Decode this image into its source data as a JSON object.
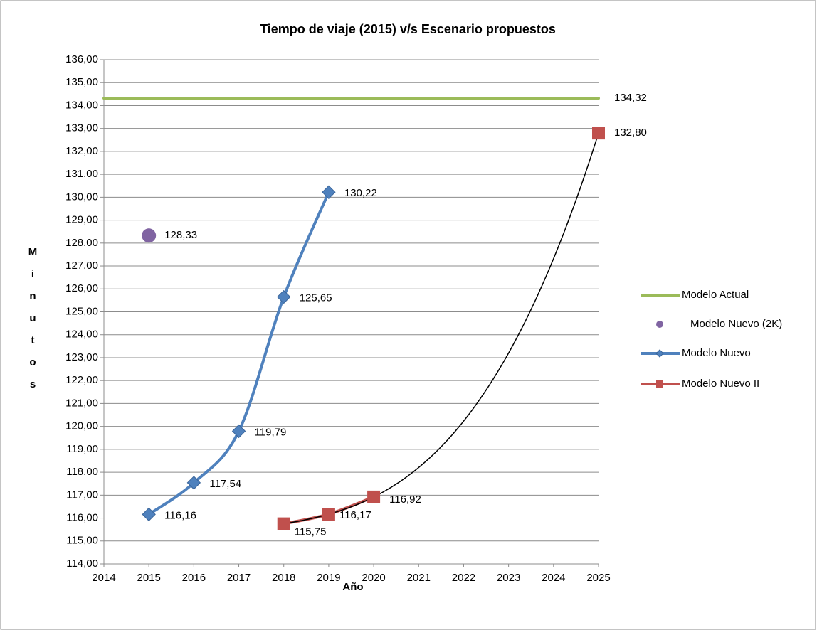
{
  "chart_data": {
    "type": "line",
    "title": "Tiempo de viaje (2015) v/s  Escenario propuestos",
    "xlabel": "Año",
    "ylabel": "Minutos",
    "xlim": [
      2014,
      2025
    ],
    "xticks": [
      2014,
      2015,
      2016,
      2017,
      2018,
      2019,
      2020,
      2021,
      2022,
      2023,
      2024,
      2025
    ],
    "ylim": [
      114,
      136
    ],
    "yticks": [
      {
        "value": 114,
        "label": "114,00"
      },
      {
        "value": 115,
        "label": "115,00"
      },
      {
        "value": 116,
        "label": "116,00"
      },
      {
        "value": 117,
        "label": "117,00"
      },
      {
        "value": 118,
        "label": "118,00"
      },
      {
        "value": 119,
        "label": "119,00"
      },
      {
        "value": 120,
        "label": "120,00"
      },
      {
        "value": 121,
        "label": "121,00"
      },
      {
        "value": 122,
        "label": "122,00"
      },
      {
        "value": 123,
        "label": "123,00"
      },
      {
        "value": 124,
        "label": "124,00"
      },
      {
        "value": 125,
        "label": "125,00"
      },
      {
        "value": 126,
        "label": "126,00"
      },
      {
        "value": 127,
        "label": "127,00"
      },
      {
        "value": 128,
        "label": "128,00"
      },
      {
        "value": 129,
        "label": "129,00"
      },
      {
        "value": 130,
        "label": "130,00"
      },
      {
        "value": 131,
        "label": "131,00"
      },
      {
        "value": 132,
        "label": "132,00"
      },
      {
        "value": 133,
        "label": "133,00"
      },
      {
        "value": 134,
        "label": "134,00"
      },
      {
        "value": 135,
        "label": "135,00"
      },
      {
        "value": 136,
        "label": "136,00"
      }
    ],
    "grid": true,
    "legend": "right",
    "series": [
      {
        "name": "Modelo Actual",
        "color": "#9bbb59",
        "line": true,
        "smooth": false,
        "marker": "none",
        "x": [
          2014,
          2025
        ],
        "values": [
          134.32,
          134.32
        ],
        "value_labels": [
          null,
          "134,32"
        ]
      },
      {
        "name": "Modelo Nuevo (2K)",
        "color": "#8064a2",
        "line": false,
        "marker": "circle",
        "x": [
          2015
        ],
        "values": [
          128.33
        ],
        "value_labels": [
          "128,33"
        ]
      },
      {
        "name": "Modelo Nuevo",
        "color": "#4f81bd",
        "line": true,
        "smooth": true,
        "marker": "diamond",
        "x": [
          2015,
          2016,
          2017,
          2018,
          2019
        ],
        "values": [
          116.16,
          117.54,
          119.79,
          125.65,
          130.22
        ],
        "value_labels": [
          "116,16",
          "117,54",
          "119,79",
          "125,65",
          "130,22"
        ]
      },
      {
        "name": "Modelo Nuevo II",
        "color": "#c0504d",
        "line": true,
        "smooth": true,
        "marker": "square",
        "x": [
          2018,
          2019,
          2020,
          2021,
          2025
        ],
        "values": [
          115.75,
          116.17,
          116.92,
          null,
          132.8
        ],
        "value_labels": [
          "115,75",
          "116,17",
          "116,92",
          null,
          "132,80"
        ],
        "trendline": {
          "type": "polynomial",
          "order": 3,
          "color": "#000000"
        }
      }
    ]
  }
}
